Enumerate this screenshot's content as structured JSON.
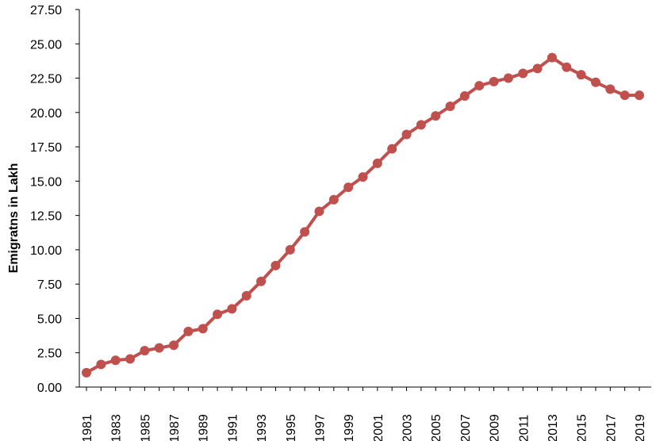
{
  "chart_data": {
    "type": "line",
    "title": "",
    "xlabel": "",
    "ylabel": "Emigratns in Lakh",
    "ylim": [
      0,
      27.5
    ],
    "yticks": [
      "0.00",
      "2.50",
      "5.00",
      "7.50",
      "10.00",
      "12.50",
      "15.00",
      "17.50",
      "20.00",
      "22.50",
      "25.00",
      "27.50"
    ],
    "xticks": [
      "1981",
      "1983",
      "1985",
      "1987",
      "1989",
      "1991",
      "1993",
      "1995",
      "1997",
      "1999",
      "2001",
      "2003",
      "2005",
      "2007",
      "2009",
      "2011",
      "2013",
      "2015",
      "2017",
      "2019"
    ],
    "grid": false,
    "legend": "none",
    "series": [
      {
        "color": "#c0504d",
        "x": [
          1981,
          1982,
          1983,
          1984,
          1985,
          1986,
          1987,
          1988,
          1989,
          1990,
          1991,
          1992,
          1993,
          1994,
          1995,
          1996,
          1997,
          1998,
          1999,
          2000,
          2001,
          2002,
          2003,
          2004,
          2005,
          2006,
          2007,
          2008,
          2009,
          2010,
          2011,
          2012,
          2013,
          2014,
          2015,
          2016,
          2017,
          2018,
          2019
        ],
        "values": [
          1.05,
          1.65,
          1.95,
          2.05,
          2.65,
          2.85,
          3.05,
          4.05,
          4.25,
          5.3,
          5.7,
          6.65,
          7.7,
          8.85,
          10.0,
          11.3,
          12.8,
          13.65,
          14.55,
          15.3,
          16.3,
          17.35,
          18.4,
          19.1,
          19.75,
          20.45,
          21.2,
          21.95,
          22.25,
          22.5,
          22.85,
          23.2,
          24.0,
          23.3,
          22.75,
          22.2,
          21.7,
          21.25,
          21.25
        ]
      }
    ]
  }
}
